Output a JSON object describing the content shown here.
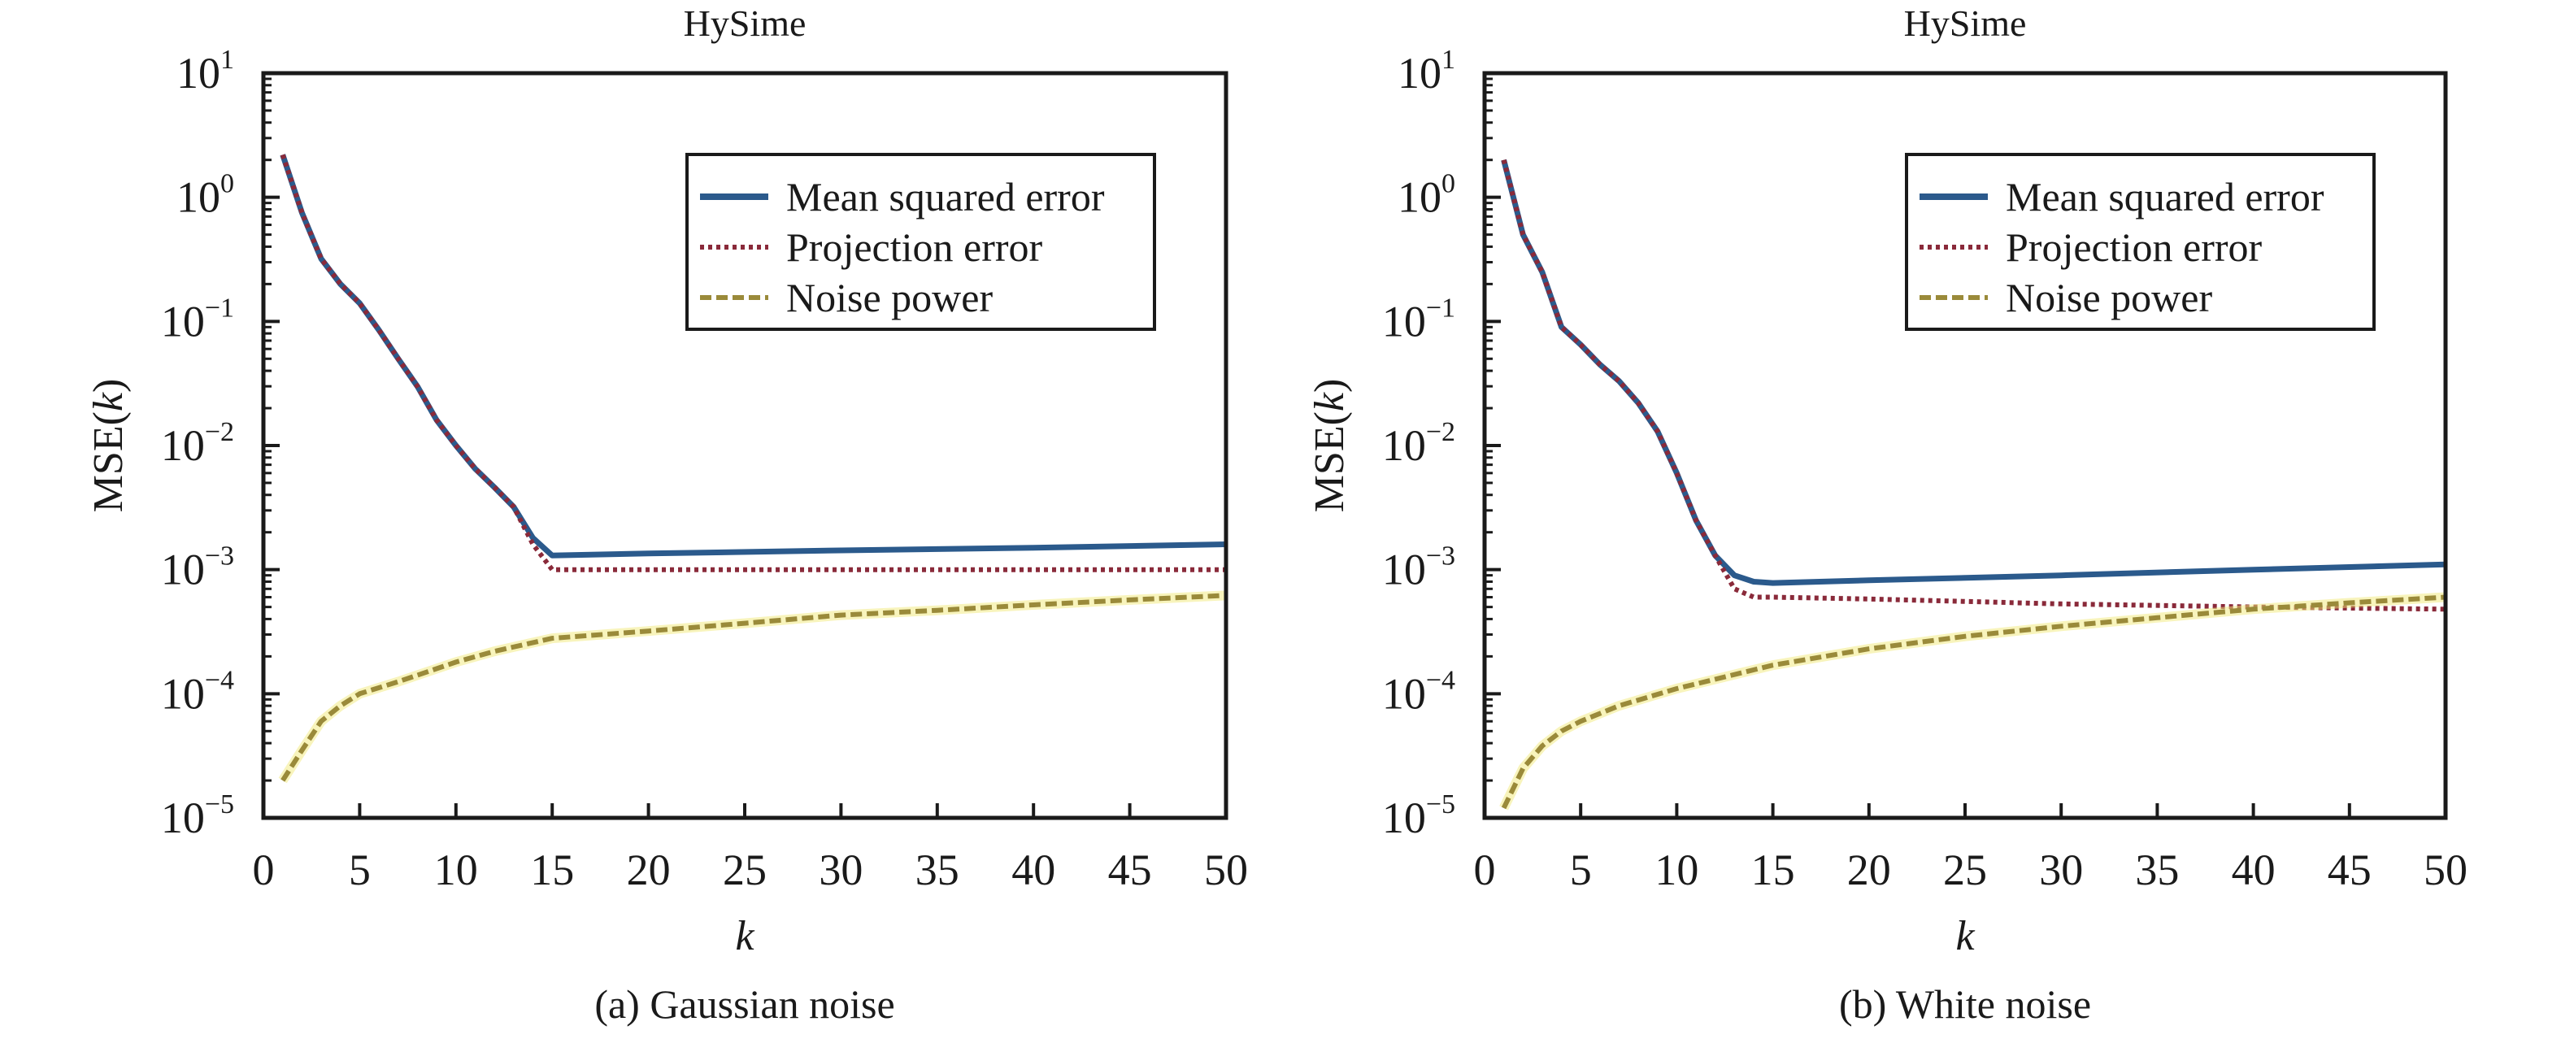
{
  "chart_data": [
    {
      "type": "line",
      "title": "HySime",
      "caption": "(a) Gaussian noise",
      "xlabel": "k",
      "ylabel_prefix": "MSE(",
      "ylabel_var": "k",
      "ylabel_suffix": ")",
      "xlim": [
        0,
        50
      ],
      "ylim": [
        1e-05,
        10
      ],
      "yscale": "log",
      "grid": false,
      "legend_position": "top-right",
      "x_ticks": [
        "0",
        "5",
        "10",
        "15",
        "20",
        "25",
        "30",
        "35",
        "40",
        "45",
        "50"
      ],
      "y_ticks": [
        {
          "base": "10",
          "exp": "−5"
        },
        {
          "base": "10",
          "exp": "−4"
        },
        {
          "base": "10",
          "exp": "−3"
        },
        {
          "base": "10",
          "exp": "−2"
        },
        {
          "base": "10",
          "exp": "−1"
        },
        {
          "base": "10",
          "exp": "0"
        },
        {
          "base": "10",
          "exp": "1"
        }
      ],
      "series": [
        {
          "name": "Mean squared error",
          "color": "#2b5a8c",
          "style": "solid",
          "x": [
            1,
            2,
            3,
            4,
            5,
            6,
            7,
            8,
            9,
            10,
            11,
            12,
            13,
            14,
            15,
            20,
            30,
            40,
            50
          ],
          "y": [
            2.2,
            0.75,
            0.32,
            0.2,
            0.14,
            0.085,
            0.05,
            0.03,
            0.016,
            0.01,
            0.0065,
            0.0046,
            0.0032,
            0.0018,
            0.0013,
            0.00135,
            0.00143,
            0.0015,
            0.0016
          ]
        },
        {
          "name": "Projection error",
          "color": "#8a2a3a",
          "style": "dotted",
          "x": [
            1,
            2,
            3,
            4,
            5,
            6,
            7,
            8,
            9,
            10,
            11,
            12,
            13,
            14,
            15,
            20,
            30,
            40,
            50
          ],
          "y": [
            2.2,
            0.75,
            0.32,
            0.2,
            0.14,
            0.085,
            0.05,
            0.03,
            0.016,
            0.01,
            0.0065,
            0.0046,
            0.0032,
            0.0016,
            0.001,
            0.001,
            0.001,
            0.001,
            0.001
          ]
        },
        {
          "name": "Noise power",
          "color": "#9a8a3a",
          "style": "dashed",
          "x": [
            1,
            2,
            3,
            4,
            5,
            7,
            10,
            12,
            15,
            20,
            25,
            30,
            35,
            40,
            45,
            50
          ],
          "y": [
            2e-05,
            3.5e-05,
            6e-05,
            8e-05,
            0.0001,
            0.000125,
            0.00018,
            0.00022,
            0.00028,
            0.00032,
            0.00037,
            0.00043,
            0.00047,
            0.00052,
            0.00057,
            0.00062
          ]
        }
      ]
    },
    {
      "type": "line",
      "title": "HySime",
      "caption": "(b) White noise",
      "xlabel": "k",
      "ylabel_prefix": "MSE(",
      "ylabel_var": "k",
      "ylabel_suffix": ")",
      "xlim": [
        0,
        50
      ],
      "ylim": [
        1e-05,
        10
      ],
      "yscale": "log",
      "grid": false,
      "legend_position": "top-right",
      "x_ticks": [
        "0",
        "5",
        "10",
        "15",
        "20",
        "25",
        "30",
        "35",
        "40",
        "45",
        "50"
      ],
      "y_ticks": [
        {
          "base": "10",
          "exp": "−5"
        },
        {
          "base": "10",
          "exp": "−4"
        },
        {
          "base": "10",
          "exp": "−3"
        },
        {
          "base": "10",
          "exp": "−2"
        },
        {
          "base": "10",
          "exp": "−1"
        },
        {
          "base": "10",
          "exp": "0"
        },
        {
          "base": "10",
          "exp": "1"
        }
      ],
      "series": [
        {
          "name": "Mean squared error",
          "color": "#2b5a8c",
          "style": "solid",
          "x": [
            1,
            2,
            3,
            4,
            5,
            6,
            7,
            8,
            9,
            10,
            11,
            12,
            13,
            14,
            15,
            20,
            30,
            40,
            50
          ],
          "y": [
            2.0,
            0.5,
            0.25,
            0.09,
            0.065,
            0.045,
            0.033,
            0.022,
            0.013,
            0.006,
            0.0025,
            0.0013,
            0.0009,
            0.0008,
            0.00078,
            0.00082,
            0.0009,
            0.001,
            0.0011
          ]
        },
        {
          "name": "Projection error",
          "color": "#8a2a3a",
          "style": "dotted",
          "x": [
            1,
            2,
            3,
            4,
            5,
            6,
            7,
            8,
            9,
            10,
            11,
            12,
            13,
            14,
            15,
            20,
            30,
            40,
            50
          ],
          "y": [
            2.0,
            0.5,
            0.25,
            0.09,
            0.065,
            0.045,
            0.033,
            0.022,
            0.013,
            0.006,
            0.0025,
            0.0013,
            0.0007,
            0.0006,
            0.0006,
            0.00058,
            0.00053,
            0.0005,
            0.00048
          ]
        },
        {
          "name": "Noise power",
          "color": "#9a8a3a",
          "style": "dashed",
          "x": [
            1,
            2,
            3,
            4,
            5,
            7,
            10,
            15,
            20,
            25,
            30,
            35,
            40,
            45,
            50
          ],
          "y": [
            1.2e-05,
            2.5e-05,
            3.8e-05,
            5e-05,
            6e-05,
            8e-05,
            0.00011,
            0.00017,
            0.00023,
            0.00029,
            0.00035,
            0.00041,
            0.00048,
            0.00054,
            0.0006
          ]
        }
      ]
    }
  ]
}
